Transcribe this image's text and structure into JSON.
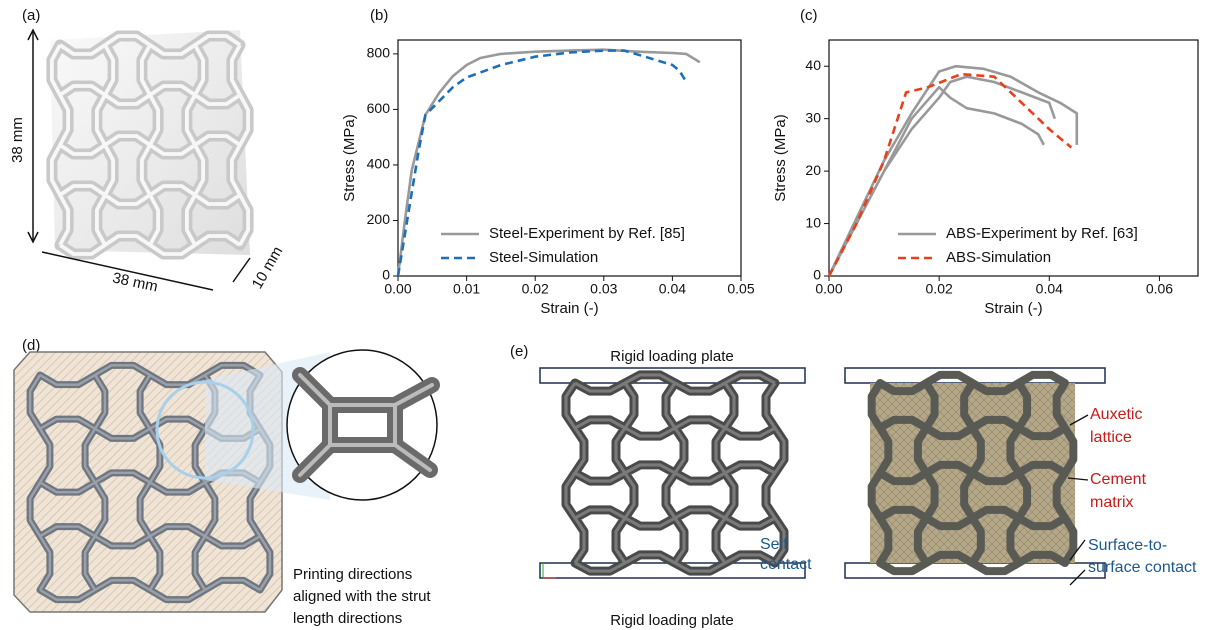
{
  "panels": {
    "a": "(a)",
    "b": "(b)",
    "c": "(c)",
    "d": "(d)",
    "e": "(e)"
  },
  "dimensions": {
    "height": "38 mm",
    "width": "38 mm",
    "depth": "10 mm"
  },
  "printing_note": [
    "Printing directions",
    "aligned with the strut",
    "length directions"
  ],
  "simulation": {
    "top_plate": "Rigid loading plate",
    "bottom_plate": "Rigid loading plate",
    "self_contact": [
      "Self",
      "contact"
    ],
    "auxetic": [
      "Auxetic",
      "lattice"
    ],
    "cement": [
      "Cement",
      "matrix"
    ],
    "surface_contact": [
      "Surface-to-",
      "surface contact"
    ]
  },
  "chart_data": [
    {
      "type": "line",
      "x_label": "Strain (-)",
      "y_label": "Stress (MPa)",
      "xlim": [
        0,
        0.05
      ],
      "ylim": [
        0,
        850
      ],
      "xticks": [
        {
          "value": 0,
          "label": "0.00"
        },
        0.01,
        0.02,
        0.03,
        0.04,
        0.05
      ],
      "yticks": [
        0,
        200,
        400,
        600,
        800
      ],
      "legend": "lower right",
      "series": [
        {
          "name": "Steel-Experiment by Ref. [85]",
          "color": "#999999",
          "line_style": "solid",
          "x": [
            0,
            0.001,
            0.002,
            0.004,
            0.006,
            0.008,
            0.01,
            0.012,
            0.015,
            0.02,
            0.025,
            0.03,
            0.035,
            0.04,
            0.042,
            0.044
          ],
          "values": [
            0,
            200,
            380,
            580,
            660,
            720,
            760,
            785,
            800,
            808,
            812,
            815,
            808,
            803,
            800,
            770
          ]
        },
        {
          "name": "Steel-Simulation",
          "color": "#1f6fb8",
          "line_style": "dashed",
          "x": [
            0,
            0.001,
            0.002,
            0.003,
            0.004,
            0.006,
            0.008,
            0.01,
            0.015,
            0.02,
            0.025,
            0.03,
            0.033,
            0.036,
            0.04,
            0.041,
            0.042
          ],
          "values": [
            0,
            150,
            300,
            450,
            580,
            630,
            680,
            715,
            760,
            790,
            805,
            812,
            812,
            790,
            760,
            740,
            700
          ]
        }
      ]
    },
    {
      "type": "line",
      "x_label": "Strain (-)",
      "y_label": "Stress (MPa)",
      "xlim": [
        0,
        0.067
      ],
      "ylim": [
        0,
        45
      ],
      "xticks": [
        {
          "value": 0,
          "label": "0.00"
        },
        0.02,
        0.04,
        0.06
      ],
      "yticks": [
        0,
        10,
        20,
        30,
        40
      ],
      "legend": "lower right",
      "series": [
        {
          "name": "ABS-Experiment by Ref. [63]",
          "color": "#999999",
          "line_style": "solid",
          "x": [
            0,
            0.005,
            0.01,
            0.015,
            0.02,
            0.022,
            0.025,
            0.03,
            0.035,
            0.04,
            0.041,
            null,
            0,
            0.005,
            0.01,
            0.015,
            0.02,
            0.022,
            0.025,
            0.03,
            0.035,
            0.038,
            0.039,
            null,
            0,
            0.005,
            0.01,
            0.015,
            0.02,
            0.023,
            0.028,
            0.033,
            0.038,
            0.042,
            0.045,
            0.045
          ],
          "values": [
            0,
            10,
            20,
            28,
            34,
            37,
            38,
            37,
            35,
            33,
            30,
            null,
            0,
            10,
            20,
            30,
            36,
            34,
            32,
            31,
            29,
            27,
            25,
            null,
            0,
            11,
            22,
            31,
            39,
            40,
            39.5,
            38,
            35,
            33,
            31,
            25
          ]
        },
        {
          "name": "ABS-Simulation",
          "color": "#e8401c",
          "line_style": "dashed",
          "x": [
            0,
            0.005,
            0.01,
            0.014,
            0.018,
            0.024,
            0.03,
            0.035,
            0.04,
            0.044
          ],
          "values": [
            0,
            10,
            22,
            35,
            36,
            38.5,
            38,
            33,
            28,
            24.5
          ]
        }
      ]
    }
  ]
}
